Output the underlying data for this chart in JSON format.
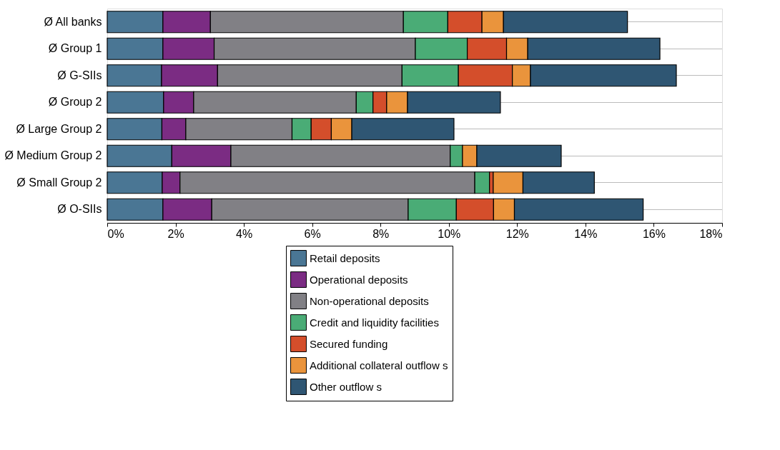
{
  "chart_data": {
    "type": "bar",
    "orientation": "horizontal",
    "stacked": true,
    "categories": [
      "Ø All banks",
      "Ø Group 1",
      "Ø G-SIIs",
      "Ø Group 2",
      "Ø Large Group 2",
      "Ø Medium Group 2",
      "Ø Small Group 2",
      "Ø O-SIIs"
    ],
    "series": [
      {
        "name": "Retail deposits",
        "color": "#4a7694",
        "values": [
          1.63,
          1.63,
          1.59,
          1.65,
          1.6,
          1.89,
          1.61,
          1.63
        ]
      },
      {
        "name": "Operational deposits",
        "color": "#7b2c83",
        "values": [
          1.39,
          1.5,
          1.64,
          0.88,
          0.7,
          1.73,
          0.52,
          1.43
        ]
      },
      {
        "name": "Non-operational deposits",
        "color": "#818085",
        "values": [
          5.65,
          5.89,
          5.4,
          4.76,
          3.11,
          6.42,
          8.63,
          5.75
        ]
      },
      {
        "name": "Credit and liquidity facilities",
        "color": "#4aac76",
        "values": [
          1.3,
          1.52,
          1.65,
          0.49,
          0.56,
          0.36,
          0.43,
          1.41
        ]
      },
      {
        "name": "Secured funding",
        "color": "#d44e2b",
        "values": [
          1.0,
          1.15,
          1.58,
          0.4,
          0.59,
          null,
          0.11,
          1.09
        ]
      },
      {
        "name": "Additional collateral outflow s",
        "color": "#ea943c",
        "values": [
          0.63,
          0.62,
          0.53,
          0.61,
          0.6,
          0.42,
          0.87,
          0.61
        ]
      },
      {
        "name": "Other outflow s",
        "color": "#2f5673",
        "values": [
          3.63,
          3.87,
          4.27,
          2.72,
          2.99,
          2.47,
          2.09,
          3.77
        ]
      }
    ],
    "xlim": [
      0,
      18
    ],
    "xticks": [
      {
        "value": 0,
        "label": "0%"
      },
      {
        "value": 2,
        "label": "2%"
      },
      {
        "value": 4,
        "label": "4%"
      },
      {
        "value": 6,
        "label": "6%"
      },
      {
        "value": 8,
        "label": "8%"
      },
      {
        "value": 10,
        "label": "10%"
      },
      {
        "value": 12,
        "label": "12%"
      },
      {
        "value": 14,
        "label": "14%"
      },
      {
        "value": 16,
        "label": "16%"
      },
      {
        "value": 18,
        "label": "18%"
      }
    ],
    "grid": "y",
    "legend": "bottom"
  }
}
